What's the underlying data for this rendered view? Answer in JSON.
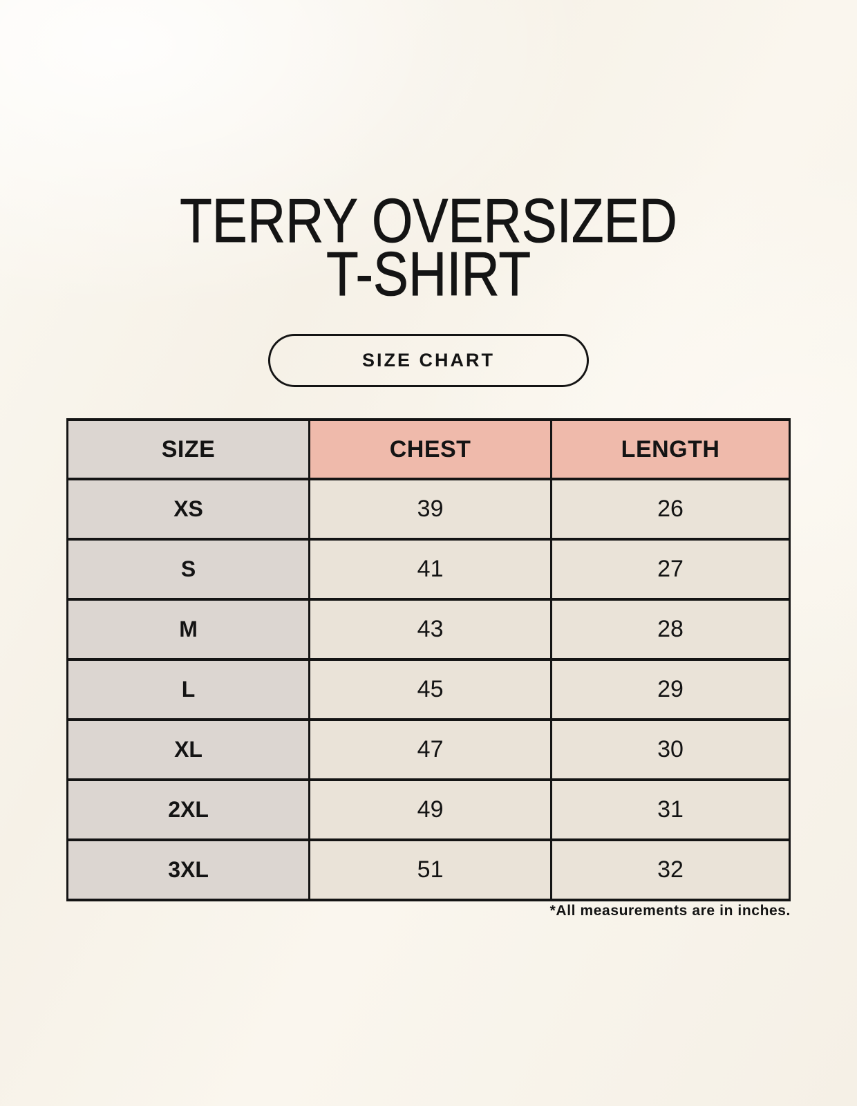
{
  "header": {
    "title_line1": "TERRY OVERSIZED",
    "title_line2": "T-SHIRT",
    "badge_label": "SIZE CHART"
  },
  "footnote": "*All measurements are in inches.",
  "chart_data": {
    "type": "table",
    "title": "TERRY OVERSIZED T-SHIRT",
    "columns": [
      "SIZE",
      "CHEST",
      "LENGTH"
    ],
    "rows": [
      [
        "XS",
        "39",
        "26"
      ],
      [
        "S",
        "41",
        "27"
      ],
      [
        "M",
        "43",
        "28"
      ],
      [
        "L",
        "45",
        "29"
      ],
      [
        "XL",
        "47",
        "30"
      ],
      [
        "2XL",
        "49",
        "31"
      ],
      [
        "3XL",
        "51",
        "32"
      ]
    ],
    "units_note": "*All measurements are in inches."
  },
  "colors": {
    "page-bg": "#FAF6EF",
    "cell-cream": "#EAE3D8",
    "cell-gray": "#DCD6D1",
    "accent-pink": "#EFBAAB",
    "ink": "#141414"
  }
}
